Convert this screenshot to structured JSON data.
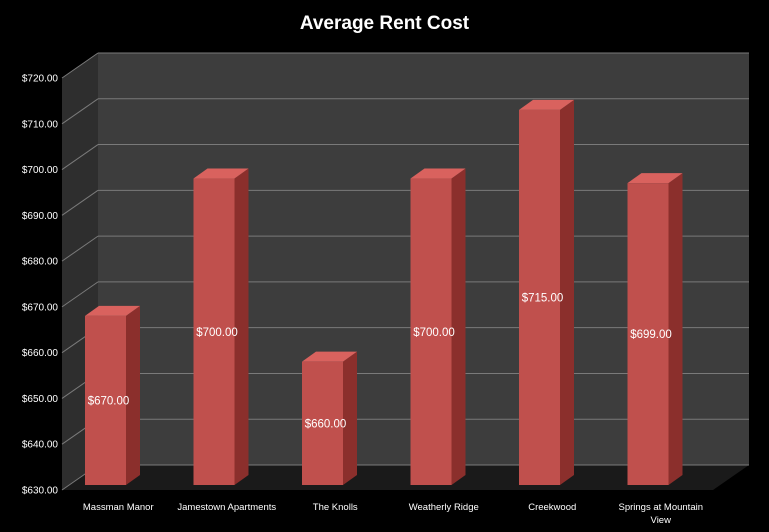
{
  "chart_data": {
    "type": "bar",
    "title": "Average Rent Cost",
    "xlabel": "",
    "ylabel": "",
    "categories": [
      "Massman Manor",
      "Jamestown Apartments",
      "The Knolls",
      "Weatherly Ridge",
      "Creekwood",
      "Springs at Mountain View"
    ],
    "values": [
      670,
      700,
      660,
      700,
      715,
      699
    ],
    "data_labels": [
      "$670.00",
      "$700.00",
      "$660.00",
      "$700.00",
      "$715.00",
      "$699.00"
    ],
    "yticks": [
      "$630.00",
      "$640.00",
      "$650.00",
      "$660.00",
      "$670.00",
      "$680.00",
      "$690.00",
      "$700.00",
      "$710.00",
      "$720.00"
    ],
    "ylim": [
      630,
      720
    ],
    "grid": true,
    "legend": "none",
    "colors": {
      "bar_front": "#c0504d",
      "bar_side": "#8b2f2c",
      "bar_top": "#d9625e",
      "back_wall": "#3d3d3d",
      "side_wall": "#2e2e2e",
      "floor": "#1a1a1a",
      "gridline": "#7a7a7a",
      "background": "#000000"
    }
  }
}
